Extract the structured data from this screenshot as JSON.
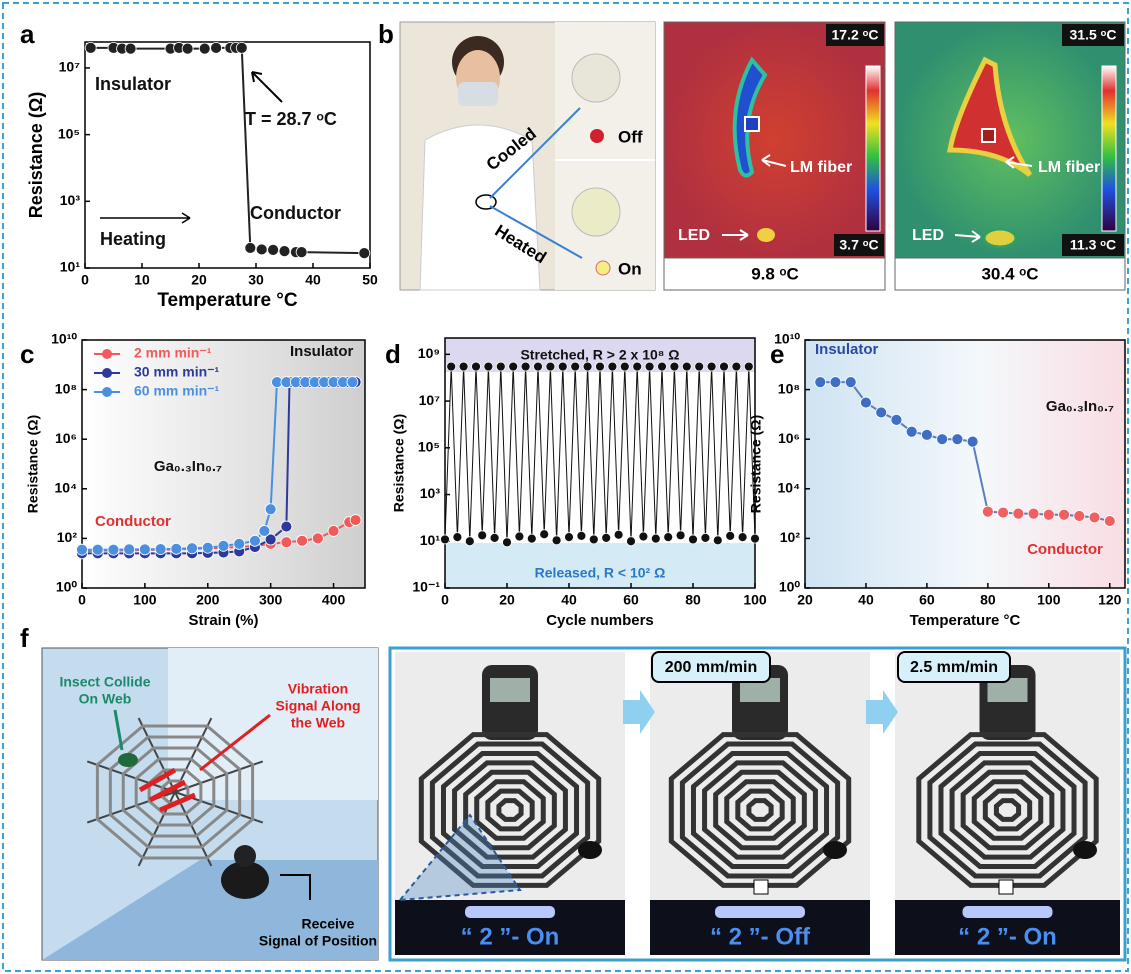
{
  "panels": [
    "a",
    "b",
    "c",
    "d",
    "e",
    "f"
  ],
  "chart_data": [
    {
      "type": "scatter-line",
      "x": [
        1,
        5,
        6.5,
        8,
        15,
        16.5,
        18,
        21,
        23,
        25.5,
        26.5,
        27.5,
        29,
        31,
        33,
        35,
        37,
        38,
        49
      ],
      "values": [
        40000000,
        40000000,
        38000000,
        38000000,
        38000000,
        40000000,
        38000000,
        38000000,
        40000000,
        40000000,
        40000000,
        40000000,
        40,
        36,
        35,
        32,
        30,
        30,
        28
      ],
      "color": "#222222",
      "log_y": true,
      "xlim": [
        0,
        50
      ],
      "xticks": [
        0,
        10,
        20,
        30,
        40,
        50
      ],
      "ylim": [
        10,
        60000000
      ],
      "yticks": [
        {
          "value": 10,
          "label": "10¹"
        },
        {
          "value": 1000,
          "label": "10³"
        },
        {
          "value": 100000,
          "label": "10⁵"
        },
        {
          "value": 10000000,
          "label": "10⁷"
        }
      ],
      "xlabel": "Temperature °C",
      "ylabel": "Resistance (Ω)",
      "annotations": [
        "Insulator",
        "T = 28.7 ᵒC",
        "Heating",
        "Conductor"
      ]
    },
    {
      "type": "scatter-line",
      "log_y": true,
      "xlim": [
        0,
        450
      ],
      "xticks": [
        0,
        100,
        200,
        300,
        400
      ],
      "ylim": [
        1,
        10000000000
      ],
      "yticks": [
        {
          "value": 1,
          "label": "10⁰"
        },
        {
          "value": 100,
          "label": "10²"
        },
        {
          "value": 10000,
          "label": "10⁴"
        },
        {
          "value": 1000000,
          "label": "10⁶"
        },
        {
          "value": 100000000,
          "label": "10⁸"
        },
        {
          "value": 10000000000,
          "label": "10¹⁰"
        }
      ],
      "xlabel": "Strain (%)",
      "ylabel": "Resistance (Ω)",
      "legend": "upper left",
      "annotations": [
        "Insulator",
        "Conductor",
        "Ga₀.₃In₀.₇"
      ],
      "series": [
        {
          "name": "2 mm min⁻¹",
          "color": "#f05a5a",
          "x": [
            0,
            25,
            50,
            75,
            100,
            125,
            150,
            175,
            200,
            225,
            250,
            275,
            300,
            325,
            350,
            375,
            400,
            425,
            435
          ],
          "values": [
            30,
            32,
            32,
            33,
            34,
            35,
            36,
            38,
            40,
            42,
            45,
            50,
            60,
            70,
            80,
            100,
            200,
            450,
            550
          ]
        },
        {
          "name": "30 mm min⁻¹",
          "color": "#2e3a9a",
          "x": [
            0,
            25,
            50,
            75,
            100,
            125,
            150,
            175,
            200,
            225,
            250,
            275,
            300,
            325,
            330,
            345,
            360,
            375,
            390,
            405,
            420,
            435
          ],
          "values": [
            25,
            25,
            25,
            25,
            25,
            25,
            25,
            25,
            26,
            27,
            30,
            45,
            90,
            300,
            200000000,
            200000000,
            200000000,
            200000000,
            200000000,
            200000000,
            200000000,
            200000000
          ]
        },
        {
          "name": "60 mm min⁻¹",
          "color": "#4a8fe0",
          "x": [
            0,
            25,
            50,
            75,
            100,
            125,
            150,
            175,
            200,
            225,
            250,
            275,
            290,
            300,
            310,
            325,
            340,
            355,
            370,
            385,
            400,
            415,
            430
          ],
          "values": [
            35,
            35,
            35,
            36,
            36,
            37,
            38,
            40,
            42,
            50,
            60,
            80,
            200,
            1500,
            200000000,
            200000000,
            200000000,
            200000000,
            200000000,
            200000000,
            200000000,
            200000000,
            200000000
          ]
        }
      ]
    },
    {
      "type": "scatter-line",
      "log_y": true,
      "color": "#111111",
      "x": [
        0,
        2,
        4,
        6,
        8,
        10,
        12,
        14,
        16,
        18,
        20,
        22,
        24,
        26,
        28,
        30,
        32,
        34,
        36,
        38,
        40,
        42,
        44,
        46,
        48,
        50,
        52,
        54,
        56,
        58,
        60,
        62,
        64,
        66,
        68,
        70,
        72,
        74,
        76,
        78,
        80,
        82,
        84,
        86,
        88,
        90,
        92,
        94,
        96,
        98,
        100
      ],
      "values": [
        12,
        300000000,
        15,
        300000000,
        10,
        300000000,
        18,
        300000000,
        14,
        300000000,
        9,
        300000000,
        16,
        300000000,
        13,
        300000000,
        20,
        300000000,
        11,
        300000000,
        15,
        300000000,
        17,
        300000000,
        12,
        300000000,
        14,
        300000000,
        19,
        300000000,
        10,
        300000000,
        16,
        300000000,
        13,
        300000000,
        15,
        300000000,
        18,
        300000000,
        12,
        300000000,
        14,
        300000000,
        11,
        300000000,
        17,
        300000000,
        15,
        300000000,
        13
      ],
      "xlim": [
        0,
        100
      ],
      "xticks": [
        0,
        20,
        40,
        60,
        80,
        100
      ],
      "ylim": [
        0.1,
        5000000000
      ],
      "yticks": [
        {
          "value": 0.1,
          "label": "10⁻¹"
        },
        {
          "value": 10,
          "label": "10¹"
        },
        {
          "value": 1000,
          "label": "10³"
        },
        {
          "value": 100000,
          "label": "10⁵"
        },
        {
          "value": 10000000,
          "label": "10⁷"
        },
        {
          "value": 1000000000,
          "label": "10⁹"
        }
      ],
      "xlabel": "Cycle numbers",
      "ylabel": "Resistance (Ω)",
      "annotations": [
        "Stretched, R > 2 x 10⁸ Ω",
        "Released, R < 10² Ω"
      ]
    },
    {
      "type": "scatter-line",
      "log_y": true,
      "color": "#5a7fc0",
      "x": [
        25,
        30,
        35,
        40,
        45,
        50,
        55,
        60,
        65,
        70,
        75,
        80,
        85,
        90,
        95,
        100,
        105,
        110,
        115,
        120
      ],
      "values": [
        200000000,
        200000000,
        200000000,
        30000000,
        12000000,
        6000000,
        2000000,
        1500000,
        1000000,
        1000000,
        800000,
        1200,
        1100,
        1000,
        1000,
        900,
        900,
        800,
        700,
        500
      ],
      "colors": [
        "#3f6fc4",
        "#3f6fc4",
        "#3f6fc4",
        "#3f6fc4",
        "#3f6fc4",
        "#3f6fc4",
        "#3f6fc4",
        "#3f6fc4",
        "#3f6fc4",
        "#3f6fc4",
        "#3f6fc4",
        "#f06060",
        "#f06060",
        "#f06060",
        "#f06060",
        "#f06060",
        "#f06060",
        "#f06060",
        "#f06060",
        "#f06060"
      ],
      "xlim": [
        20,
        125
      ],
      "xticks": [
        20,
        40,
        60,
        80,
        100,
        120
      ],
      "ylim": [
        1,
        10000000000
      ],
      "yticks": [
        {
          "value": 1,
          "label": "10⁰"
        },
        {
          "value": 100,
          "label": "10²"
        },
        {
          "value": 10000,
          "label": "10⁴"
        },
        {
          "value": 1000000,
          "label": "10⁶"
        },
        {
          "value": 100000000,
          "label": "10⁸"
        },
        {
          "value": 10000000000,
          "label": "10¹⁰"
        }
      ],
      "xlabel": "Temperature °C",
      "ylabel": "Resistance (Ω)",
      "annotations": [
        "Insulator",
        "Conductor",
        "Ga₀.₃In₀.₇"
      ]
    }
  ],
  "panel_b": {
    "cooled": "Cooled",
    "heated": "Heated",
    "off": "Off",
    "on": "On",
    "thermal_cold": {
      "max": "17.2 ᵒC",
      "min": "3.7 ᵒC",
      "fiber": "LM fiber",
      "led": "LED",
      "caption": "9.8 ᵒC"
    },
    "thermal_hot": {
      "max": "31.5 ᵒC",
      "min": "11.3 ᵒC",
      "fiber": "LM fiber",
      "led": "LED",
      "caption": "30.4 ᵒC"
    }
  },
  "panel_f": {
    "insect": [
      "Insect Collide",
      "On Web"
    ],
    "vibration": [
      "Vibration",
      "Signal Along",
      "the Web"
    ],
    "receive": [
      "Receive",
      "Signal of Position"
    ],
    "speeds": [
      "200 mm/min",
      "2.5 mm/min"
    ],
    "led_states": [
      "“ 2 ”- On",
      "“ 2 ”- Off",
      "“ 2 ”- On"
    ]
  }
}
